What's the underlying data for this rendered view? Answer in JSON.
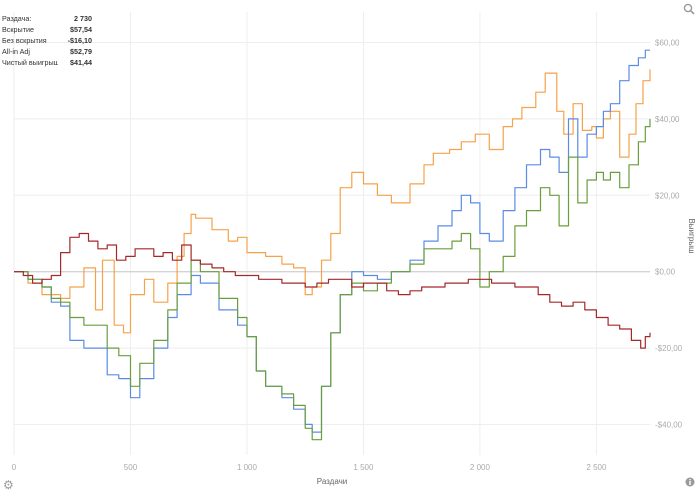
{
  "stats": {
    "rows": [
      {
        "label": "Раздача:",
        "value": "2 730"
      },
      {
        "label": "Вскрытие",
        "value": "$57,54"
      },
      {
        "label": "Без вскрытия",
        "value": "-$16,10"
      },
      {
        "label": "All-in Adj",
        "value": "$52,79"
      },
      {
        "label": "Чистый выигрыш",
        "value": "$41,44"
      }
    ]
  },
  "icons": {
    "zoom": "magnifier-icon",
    "settings": "gear-icon",
    "info": "info-icon"
  },
  "chart_data": {
    "type": "line",
    "xlabel": "Раздачи",
    "ylabel": "Выигрыш",
    "xlim": [
      0,
      2730
    ],
    "ylim": [
      -48,
      68
    ],
    "x_ticks": [
      0,
      500,
      1000,
      1500,
      2000,
      2500
    ],
    "x_tick_labels": [
      "0",
      "500",
      "1 000",
      "1 500",
      "2 000",
      "2 500"
    ],
    "y_ticks": [
      60,
      40,
      20,
      0,
      -20,
      -40
    ],
    "y_tick_labels": [
      "$60,00",
      "$40,00",
      "$20,00",
      "$0,00",
      "-$20,00",
      "-$40,00"
    ],
    "y_axis_side": "right",
    "grid": true,
    "series": [
      {
        "color": "#f5a24a",
        "x": [
          0,
          60,
          120,
          200,
          240,
          300,
          350,
          380,
          430,
          470,
          500,
          560,
          600,
          660,
          700,
          730,
          760,
          780,
          850,
          920,
          960,
          1000,
          1080,
          1150,
          1200,
          1250,
          1280,
          1320,
          1360,
          1400,
          1450,
          1500,
          1560,
          1620,
          1700,
          1760,
          1800,
          1870,
          1920,
          1980,
          2040,
          2100,
          2140,
          2180,
          2240,
          2280,
          2330,
          2360,
          2400,
          2440,
          2480,
          2500,
          2530,
          2560,
          2600,
          2640,
          2670,
          2700,
          2730
        ],
        "y": [
          0,
          -3,
          -6,
          -7,
          -4,
          1,
          -10,
          3,
          -14,
          -16,
          -6,
          -2,
          -8,
          -3,
          4,
          10,
          15,
          14,
          11,
          8,
          9,
          5,
          4,
          2,
          1,
          -6,
          -4,
          3,
          10,
          22,
          26,
          23,
          20,
          18,
          23,
          28,
          31,
          32,
          34,
          36,
          32,
          38,
          40,
          43,
          47,
          52,
          42,
          36,
          44,
          37,
          38,
          35,
          40,
          42,
          30,
          36,
          44,
          50,
          53
        ]
      },
      {
        "color": "#5a8ce6",
        "x": [
          0,
          60,
          120,
          160,
          200,
          240,
          300,
          400,
          450,
          500,
          540,
          600,
          660,
          700,
          760,
          800,
          880,
          960,
          1000,
          1040,
          1080,
          1150,
          1200,
          1250,
          1280,
          1320,
          1360,
          1400,
          1450,
          1500,
          1560,
          1620,
          1700,
          1760,
          1820,
          1880,
          1920,
          1960,
          2000,
          2040,
          2100,
          2150,
          2200,
          2260,
          2300,
          2340,
          2380,
          2420,
          2460,
          2500,
          2530,
          2560,
          2600,
          2640,
          2680,
          2710,
          2730
        ],
        "y": [
          0,
          -2,
          -4,
          -8,
          -9,
          -18,
          -20,
          -27,
          -28,
          -33,
          -28,
          -20,
          -12,
          -6,
          -1,
          -3,
          -10,
          -14,
          -17,
          -26,
          -30,
          -33,
          -36,
          -40,
          -42,
          -30,
          -16,
          -6,
          0,
          -1,
          -2,
          0,
          3,
          8,
          12,
          16,
          20,
          18,
          10,
          8,
          16,
          22,
          28,
          32,
          30,
          26,
          40,
          30,
          36,
          38,
          42,
          44,
          50,
          54,
          56,
          58,
          58
        ]
      },
      {
        "color": "#6a9e3c",
        "x": [
          0,
          60,
          120,
          160,
          200,
          240,
          300,
          400,
          450,
          500,
          540,
          600,
          660,
          700,
          760,
          800,
          880,
          960,
          1000,
          1040,
          1080,
          1150,
          1200,
          1250,
          1280,
          1320,
          1360,
          1400,
          1450,
          1500,
          1560,
          1620,
          1700,
          1760,
          1820,
          1880,
          1920,
          1960,
          2000,
          2040,
          2100,
          2150,
          2200,
          2260,
          2300,
          2340,
          2380,
          2420,
          2460,
          2500,
          2530,
          2560,
          2600,
          2640,
          2680,
          2710,
          2730
        ],
        "y": [
          0,
          -2,
          -4,
          -7,
          -8,
          -12,
          -14,
          -20,
          -22,
          -30,
          -24,
          -18,
          -10,
          -3,
          3,
          0,
          -7,
          -12,
          -17,
          -26,
          -30,
          -32,
          -35,
          -41,
          -44,
          -30,
          -16,
          -6,
          -3,
          -5,
          -3,
          0,
          2,
          6,
          6,
          8,
          10,
          6,
          -4,
          0,
          4,
          12,
          16,
          22,
          20,
          12,
          30,
          18,
          24,
          26,
          24,
          26,
          22,
          28,
          34,
          38,
          40
        ]
      },
      {
        "color": "#a3282a",
        "x": [
          0,
          40,
          80,
          120,
          160,
          200,
          240,
          280,
          320,
          360,
          400,
          440,
          480,
          520,
          560,
          600,
          640,
          680,
          720,
          760,
          800,
          850,
          900,
          950,
          1000,
          1050,
          1100,
          1150,
          1200,
          1250,
          1300,
          1350,
          1400,
          1450,
          1500,
          1550,
          1600,
          1650,
          1700,
          1750,
          1800,
          1850,
          1900,
          1950,
          2000,
          2050,
          2100,
          2150,
          2200,
          2250,
          2300,
          2350,
          2400,
          2450,
          2500,
          2550,
          2600,
          2650,
          2690,
          2710,
          2730
        ],
        "y": [
          0,
          -1,
          -3,
          -2,
          -1,
          5,
          9,
          10,
          8,
          6,
          7,
          3,
          4,
          6,
          6,
          4,
          5,
          3,
          7,
          3,
          2,
          1,
          0,
          -1,
          -1,
          -2,
          -2,
          -3,
          -3,
          -4,
          -3,
          -2,
          -2,
          -4,
          -3,
          -3,
          -5,
          -6,
          -5,
          -4,
          -4,
          -3,
          -3,
          -2,
          -2,
          -3,
          -3,
          -4,
          -4,
          -6,
          -8,
          -9,
          -8,
          -10,
          -12,
          -14,
          -15,
          -18,
          -20,
          -17,
          -16
        ]
      }
    ]
  }
}
